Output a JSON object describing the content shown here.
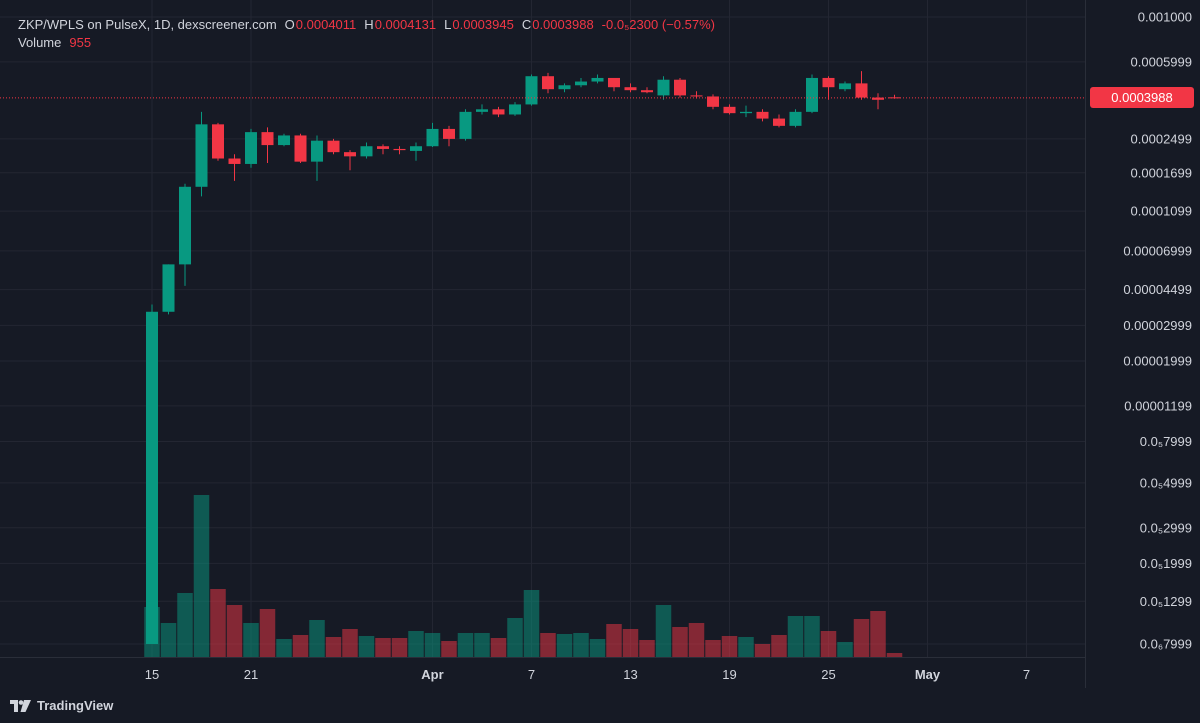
{
  "legend": {
    "symbol": "ZKP/WPLS on PulseX, 1D, dexscreener.com",
    "open_key": "O",
    "open": "0.0004011",
    "high_key": "H",
    "high": "0.0004131",
    "low_key": "L",
    "low": "0.0003945",
    "close_key": "C",
    "close": "0.0003988",
    "change": "-0.0₅2300 (−0.57%)",
    "volume_label": "Volume",
    "volume_value": "955"
  },
  "last_price_label": "0.0003988",
  "footer": {
    "brand": "TradingView"
  },
  "colors": {
    "up": "#089981",
    "down": "#f23645",
    "background": "#161a25",
    "grid": "#232632",
    "text": "#d1d4dc"
  },
  "chart_data": {
    "type": "candlestick",
    "y_scale": "log",
    "y_ticks": [
      {
        "label": "0.001000",
        "value": 0.001
      },
      {
        "label": "0.0005999",
        "value": 0.0006
      },
      {
        "label": "0.0002499",
        "value": 0.00025
      },
      {
        "label": "0.0001699",
        "value": 0.00017
      },
      {
        "label": "0.0001099",
        "value": 0.00011
      },
      {
        "label": "0.00006999",
        "value": 7e-05
      },
      {
        "label": "0.00004499",
        "value": 4.5e-05
      },
      {
        "label": "0.00002999",
        "value": 3e-05
      },
      {
        "label": "0.00001999",
        "value": 2e-05
      },
      {
        "label": "0.00001199",
        "value": 1.2e-05
      },
      {
        "label": "0.0₅7999",
        "value": 8e-06
      },
      {
        "label": "0.0₅4999",
        "value": 5e-06
      },
      {
        "label": "0.0₅2999",
        "value": 3e-06
      },
      {
        "label": "0.0₅1999",
        "value": 2e-06
      },
      {
        "label": "0.0₅1299",
        "value": 1.3e-06
      },
      {
        "label": "0.0₆7999",
        "value": 8e-07
      }
    ],
    "x_ticks": [
      {
        "label": "15",
        "index": 0,
        "bold": false
      },
      {
        "label": "21",
        "index": 6,
        "bold": false
      },
      {
        "label": "Apr",
        "index": 17,
        "bold": true
      },
      {
        "label": "7",
        "index": 23,
        "bold": false
      },
      {
        "label": "13",
        "index": 29,
        "bold": false
      },
      {
        "label": "19",
        "index": 35,
        "bold": false
      },
      {
        "label": "25",
        "index": 41,
        "bold": false
      },
      {
        "label": "May",
        "index": 47,
        "bold": true
      },
      {
        "label": "7",
        "index": 53,
        "bold": false
      }
    ],
    "last_price": 0.0003988,
    "candles": [
      {
        "o": 8e-07,
        "h": 3.8e-05,
        "l": 8e-07,
        "c": 3.5e-05,
        "v": 50
      },
      {
        "o": 3.5e-05,
        "h": 6e-05,
        "l": 3.4e-05,
        "c": 6e-05,
        "v": 34
      },
      {
        "o": 6e-05,
        "h": 0.00015,
        "l": 4.7e-05,
        "c": 0.000145,
        "v": 64
      },
      {
        "o": 0.000145,
        "h": 0.00034,
        "l": 0.00013,
        "c": 0.000295,
        "v": 162
      },
      {
        "o": 0.000295,
        "h": 0.0003,
        "l": 0.000195,
        "c": 0.0002,
        "v": 68
      },
      {
        "o": 0.0002,
        "h": 0.00021,
        "l": 0.000155,
        "c": 0.000188,
        "v": 52
      },
      {
        "o": 0.000188,
        "h": 0.00028,
        "l": 0.00018,
        "c": 0.00027,
        "v": 34
      },
      {
        "o": 0.00027,
        "h": 0.000285,
        "l": 0.00019,
        "c": 0.000233,
        "v": 48
      },
      {
        "o": 0.000233,
        "h": 0.000265,
        "l": 0.00023,
        "c": 0.00026,
        "v": 18
      },
      {
        "o": 0.00026,
        "h": 0.000265,
        "l": 0.00019,
        "c": 0.000193,
        "v": 22
      },
      {
        "o": 0.000193,
        "h": 0.00026,
        "l": 0.000155,
        "c": 0.000245,
        "v": 37
      },
      {
        "o": 0.000245,
        "h": 0.00025,
        "l": 0.00021,
        "c": 0.000215,
        "v": 20
      },
      {
        "o": 0.000215,
        "h": 0.00022,
        "l": 0.000175,
        "c": 0.000205,
        "v": 28
      },
      {
        "o": 0.000205,
        "h": 0.00024,
        "l": 0.0002,
        "c": 0.00023,
        "v": 21
      },
      {
        "o": 0.00023,
        "h": 0.000235,
        "l": 0.00021,
        "c": 0.000223,
        "v": 19
      },
      {
        "o": 0.000223,
        "h": 0.00023,
        "l": 0.00021,
        "c": 0.00022,
        "v": 19
      },
      {
        "o": 0.000218,
        "h": 0.00024,
        "l": 0.000195,
        "c": 0.00023,
        "v": 26
      },
      {
        "o": 0.00023,
        "h": 0.0003,
        "l": 0.000228,
        "c": 0.00028,
        "v": 24
      },
      {
        "o": 0.00028,
        "h": 0.00029,
        "l": 0.00023,
        "c": 0.00025,
        "v": 16
      },
      {
        "o": 0.00025,
        "h": 0.00035,
        "l": 0.000245,
        "c": 0.00034,
        "v": 24
      },
      {
        "o": 0.00034,
        "h": 0.00037,
        "l": 0.00033,
        "c": 0.00035,
        "v": 24
      },
      {
        "o": 0.00035,
        "h": 0.00036,
        "l": 0.00032,
        "c": 0.00033,
        "v": 19
      },
      {
        "o": 0.00033,
        "h": 0.00038,
        "l": 0.000325,
        "c": 0.00037,
        "v": 39
      },
      {
        "o": 0.00037,
        "h": 0.00052,
        "l": 0.000365,
        "c": 0.00051,
        "v": 67
      },
      {
        "o": 0.00051,
        "h": 0.00053,
        "l": 0.00042,
        "c": 0.00044,
        "v": 24
      },
      {
        "o": 0.00044,
        "h": 0.00047,
        "l": 0.000425,
        "c": 0.00046,
        "v": 23
      },
      {
        "o": 0.00046,
        "h": 0.0005,
        "l": 0.00045,
        "c": 0.00048,
        "v": 24
      },
      {
        "o": 0.00048,
        "h": 0.00052,
        "l": 0.00047,
        "c": 0.0005,
        "v": 18
      },
      {
        "o": 0.0005,
        "h": 0.0005,
        "l": 0.00043,
        "c": 0.00045,
        "v": 33
      },
      {
        "o": 0.00045,
        "h": 0.00047,
        "l": 0.000425,
        "c": 0.000435,
        "v": 28
      },
      {
        "o": 0.000435,
        "h": 0.00045,
        "l": 0.00042,
        "c": 0.000425,
        "v": 17
      },
      {
        "o": 0.00041,
        "h": 0.00051,
        "l": 0.00039,
        "c": 0.00049,
        "v": 52
      },
      {
        "o": 0.00049,
        "h": 0.0005,
        "l": 0.0004,
        "c": 0.00041,
        "v": 30
      },
      {
        "o": 0.00041,
        "h": 0.00043,
        "l": 0.000395,
        "c": 0.000405,
        "v": 34
      },
      {
        "o": 0.000405,
        "h": 0.000415,
        "l": 0.00035,
        "c": 0.00036,
        "v": 17
      },
      {
        "o": 0.00036,
        "h": 0.00037,
        "l": 0.00033,
        "c": 0.000335,
        "v": 21
      },
      {
        "o": 0.000335,
        "h": 0.000365,
        "l": 0.00032,
        "c": 0.00034,
        "v": 20
      },
      {
        "o": 0.00034,
        "h": 0.00035,
        "l": 0.000305,
        "c": 0.000315,
        "v": 13
      },
      {
        "o": 0.000315,
        "h": 0.00033,
        "l": 0.000285,
        "c": 0.00029,
        "v": 22
      },
      {
        "o": 0.00029,
        "h": 0.00035,
        "l": 0.000285,
        "c": 0.00034,
        "v": 41
      },
      {
        "o": 0.00034,
        "h": 0.00052,
        "l": 0.000335,
        "c": 0.0005,
        "v": 41
      },
      {
        "o": 0.0005,
        "h": 0.00051,
        "l": 0.00039,
        "c": 0.00045,
        "v": 26
      },
      {
        "o": 0.00044,
        "h": 0.00048,
        "l": 0.00043,
        "c": 0.00047,
        "v": 15
      },
      {
        "o": 0.00047,
        "h": 0.00054,
        "l": 0.00039,
        "c": 0.0004,
        "v": 38
      },
      {
        "o": 0.0004,
        "h": 0.00042,
        "l": 0.00035,
        "c": 0.00039,
        "v": 46
      },
      {
        "o": 0.0004011,
        "h": 0.0004131,
        "l": 0.0003945,
        "c": 0.0003988,
        "v": 4
      }
    ]
  }
}
